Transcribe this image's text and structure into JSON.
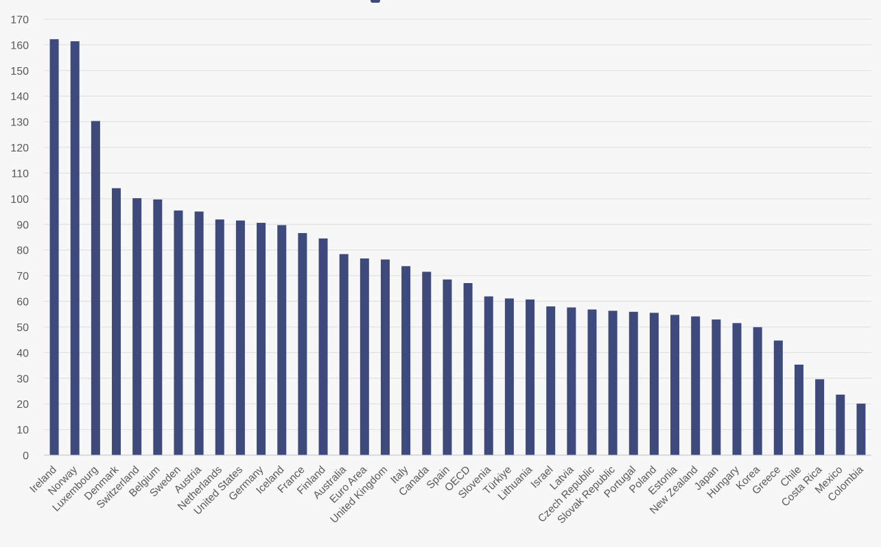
{
  "chart_data": {
    "type": "bar",
    "title": "",
    "xlabel": "",
    "ylabel": "",
    "ylim": [
      0,
      170
    ],
    "yticks": [
      0,
      10,
      20,
      30,
      40,
      50,
      60,
      70,
      80,
      90,
      100,
      110,
      120,
      130,
      140,
      150,
      160,
      170
    ],
    "grid": true,
    "legend": "top-center",
    "bar_color": "#3f4a7c",
    "categories": [
      "Ireland",
      "Norway",
      "Luxembourg",
      "Denmark",
      "Switzerland",
      "Belgium",
      "Sweden",
      "Austria",
      "Netherlands",
      "United States",
      "Germany",
      "Iceland",
      "France",
      "Finland",
      "Australia",
      "Euro Area",
      "United Kingdom",
      "Italy",
      "Canada",
      "Spain",
      "OECD",
      "Slovenia",
      "Türkiye",
      "Lithuania",
      "Israel",
      "Latvia",
      "Czech Republic",
      "Slovak Republic",
      "Portugal",
      "Poland",
      "Estonia",
      "New Zealand",
      "Japan",
      "Hungary",
      "Korea",
      "Greece",
      "Chile",
      "Costa Rica",
      "Mexico",
      "Colombia"
    ],
    "values": [
      162.2,
      161.4,
      130.3,
      104.1,
      100.2,
      99.7,
      95.4,
      95.0,
      91.9,
      91.5,
      90.6,
      89.7,
      86.6,
      84.5,
      78.4,
      76.7,
      76.3,
      73.7,
      71.5,
      68.5,
      67.1,
      61.9,
      61.1,
      60.7,
      58.0,
      57.6,
      56.8,
      56.3,
      55.9,
      55.5,
      54.7,
      54.1,
      52.9,
      51.5,
      49.9,
      44.7,
      35.3,
      29.6,
      23.6,
      20.1
    ]
  }
}
